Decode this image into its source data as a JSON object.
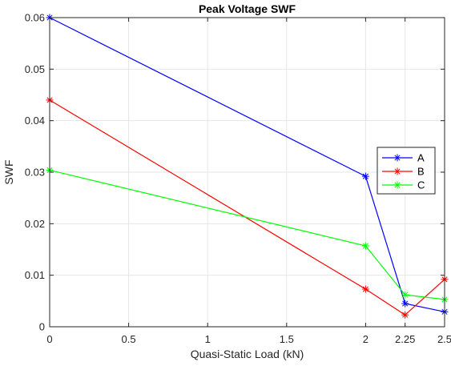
{
  "chart_data": {
    "type": "line",
    "title": "Peak Voltage SWF",
    "xlabel": "Quasi-Static Load (kN)",
    "ylabel": "SWF",
    "xlim": [
      0,
      2.5
    ],
    "ylim": [
      0,
      0.06
    ],
    "x_ticks": [
      0,
      0.5,
      1,
      1.5,
      2,
      2.25,
      2.5
    ],
    "x_tick_labels": [
      "0",
      "0.5",
      "1",
      "1.5",
      "2",
      "2.25",
      "2.5"
    ],
    "y_ticks": [
      0,
      0.01,
      0.02,
      0.03,
      0.04,
      0.05,
      0.06
    ],
    "y_tick_labels": [
      "0",
      "0.01",
      "0.02",
      "0.03",
      "0.04",
      "0.05",
      "0.06"
    ],
    "grid": true,
    "legend_position": "right",
    "x": [
      0,
      2,
      2.25,
      2.5
    ],
    "series": [
      {
        "name": "A",
        "color": "#0000ff",
        "marker": "asterisk",
        "values": [
          0.06,
          0.0292,
          0.0045,
          0.0029
        ]
      },
      {
        "name": "B",
        "color": "#ff0000",
        "marker": "asterisk",
        "values": [
          0.044,
          0.0073,
          0.0023,
          0.0092
        ]
      },
      {
        "name": "C",
        "color": "#00ff00",
        "marker": "asterisk",
        "values": [
          0.0304,
          0.0157,
          0.0062,
          0.0053
        ]
      }
    ]
  }
}
